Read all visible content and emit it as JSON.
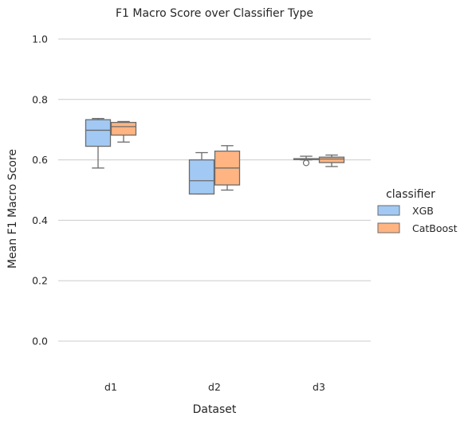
{
  "chart_data": {
    "type": "box",
    "title": "F1 Macro Score over Classifier Type",
    "xlabel": "Dataset",
    "ylabel": "Mean F1 Macro Score",
    "categories": [
      "d1",
      "d2",
      "d3"
    ],
    "ylim": [
      -0.11,
      1.03
    ],
    "yticks": [
      0.0,
      0.2,
      0.4,
      0.6,
      0.8,
      1.0
    ],
    "ytick_labels": [
      "0.0",
      "0.2",
      "0.4",
      "0.6",
      "0.8",
      "1.0"
    ],
    "grid": "horizontal",
    "legend": {
      "title": "classifier",
      "placement": "right"
    },
    "series": [
      {
        "name": "XGB",
        "color": "#a1c9f4",
        "boxes": [
          {
            "whislo": 0.573,
            "q1": 0.645,
            "med": 0.698,
            "q3": 0.733,
            "whishi": 0.737,
            "fliers": []
          },
          {
            "whislo": 0.487,
            "q1": 0.487,
            "med": 0.531,
            "q3": 0.6,
            "whishi": 0.624,
            "fliers": []
          },
          {
            "whislo": 0.6,
            "q1": 0.601,
            "med": 0.603,
            "q3": 0.604,
            "whishi": 0.612,
            "fliers": [
              0.59
            ]
          }
        ]
      },
      {
        "name": "CatBoost",
        "color": "#ffb482",
        "boxes": [
          {
            "whislo": 0.659,
            "q1": 0.682,
            "med": 0.71,
            "q3": 0.724,
            "whishi": 0.727,
            "fliers": []
          },
          {
            "whislo": 0.5,
            "q1": 0.517,
            "med": 0.573,
            "q3": 0.629,
            "whishi": 0.647,
            "fliers": []
          },
          {
            "whislo": 0.578,
            "q1": 0.591,
            "med": 0.603,
            "q3": 0.609,
            "whishi": 0.616,
            "fliers": []
          }
        ]
      }
    ]
  }
}
